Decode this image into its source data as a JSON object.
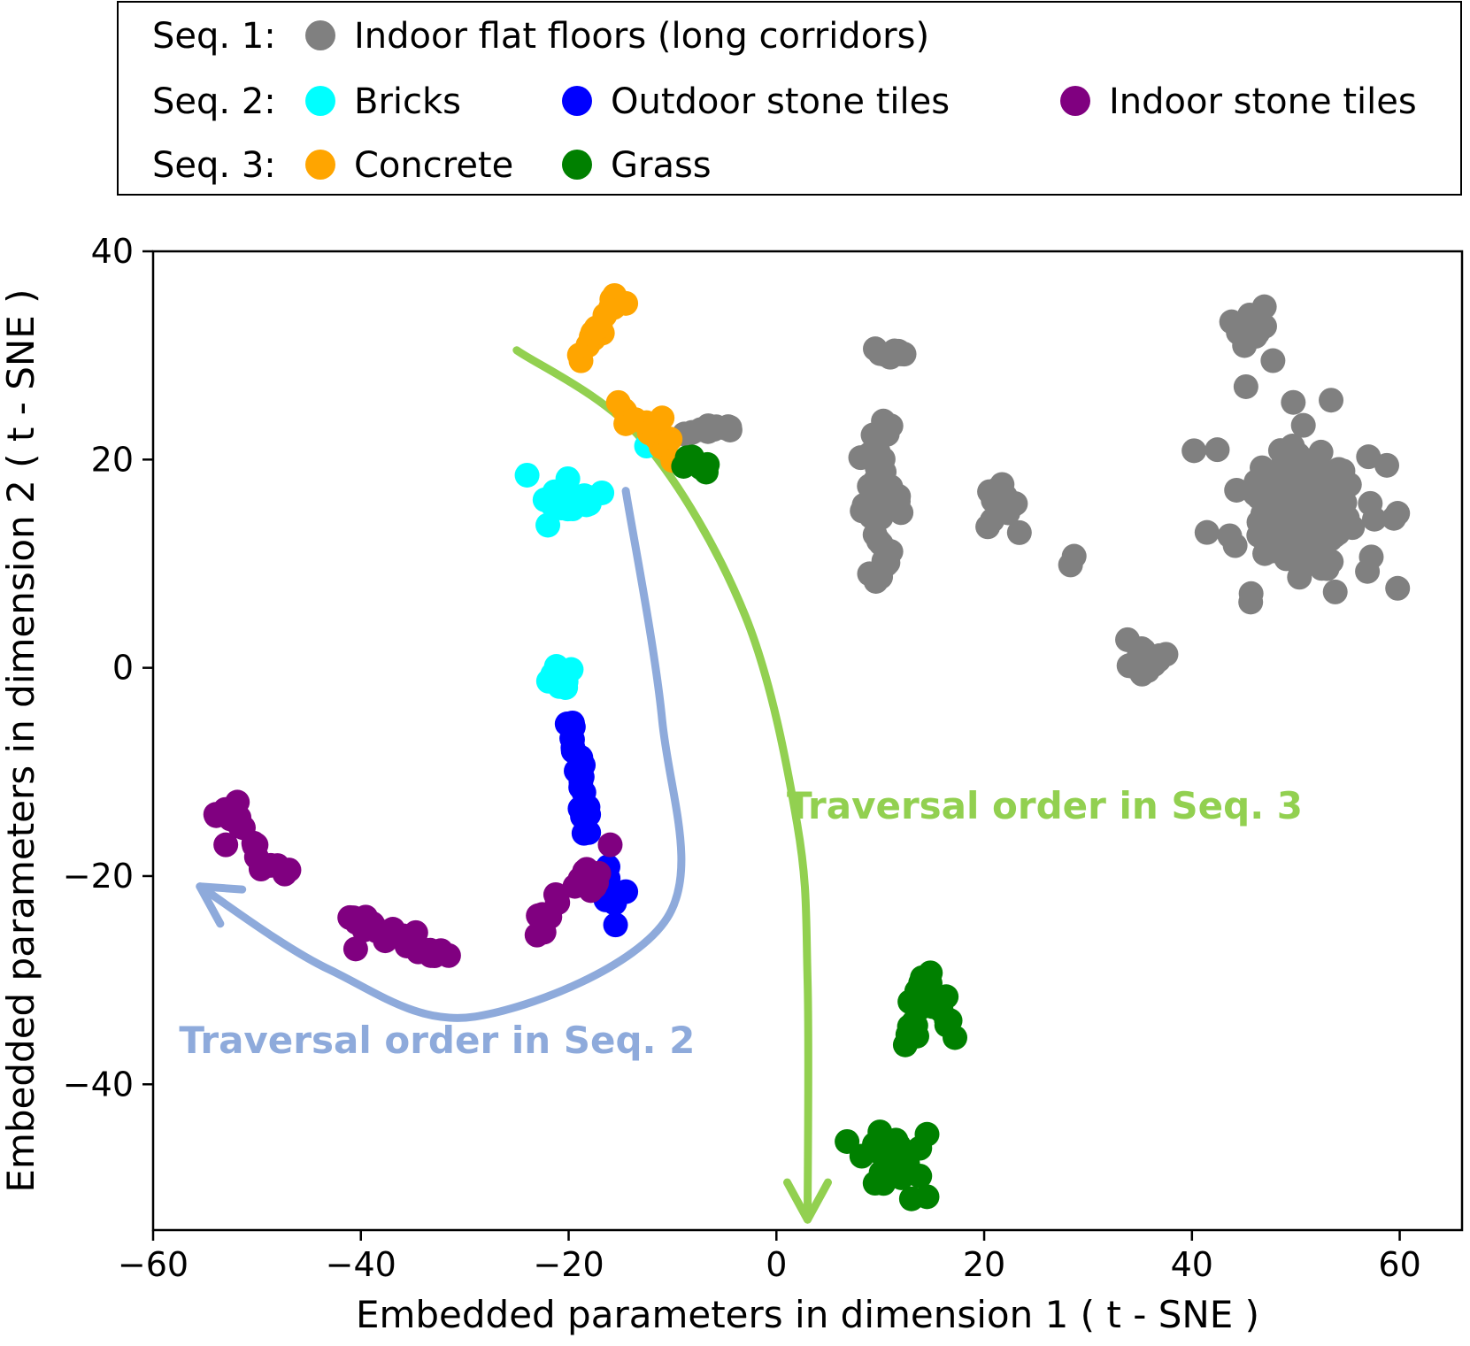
{
  "chart_data": {
    "type": "scatter",
    "xlabel": "Embedded parameters in dimension 1 ( t - SNE )",
    "ylabel": "Embedded parameters in dimension 2 ( t - SNE )",
    "xlim": [
      -60,
      66
    ],
    "ylim": [
      -54,
      40
    ],
    "xticks": [
      -60,
      -40,
      -20,
      0,
      20,
      40,
      60
    ],
    "yticks": [
      -40,
      -20,
      0,
      20,
      40
    ],
    "xtick_labels": [
      "−60",
      "−40",
      "−20",
      "0",
      "20",
      "40",
      "60"
    ],
    "ytick_labels": [
      "−40",
      "−20",
      "0",
      "20",
      "40"
    ],
    "grid": false,
    "legend": {
      "placement": "top",
      "groups": [
        {
          "label": "Seq. 1:",
          "entries": [
            {
              "name": "Indoor flat floors (long corridors)",
              "color": "#808080"
            }
          ]
        },
        {
          "label": "Seq. 2:",
          "entries": [
            {
              "name": "Bricks",
              "color": "#00ffff"
            },
            {
              "name": "Outdoor stone tiles",
              "color": "#0000ff"
            },
            {
              "name": "Indoor stone tiles",
              "color": "#800080"
            }
          ]
        },
        {
          "label": "Seq. 3:",
          "entries": [
            {
              "name": "Concrete",
              "color": "#ffa500"
            },
            {
              "name": "Grass",
              "color": "#008000"
            }
          ]
        }
      ]
    },
    "series": [
      {
        "name": "Indoor flat floors (long corridors)",
        "color": "#808080",
        "clusters": [
          {
            "center": [
              51,
              15
            ],
            "spread": [
              3.5,
              4.5
            ],
            "n": 170
          },
          {
            "center": [
              50,
              16
            ],
            "spread": [
              7,
              7
            ],
            "n": 65
          },
          {
            "center": [
              45.5,
              33
            ],
            "spread": [
              1.2,
              1.6
            ],
            "n": 12
          },
          {
            "center": [
              35.5,
              0.5
            ],
            "spread": [
              1.3,
              1.3
            ],
            "n": 14
          },
          {
            "center": [
              28.5,
              10.3
            ],
            "spread": [
              0.3,
              0.3
            ],
            "n": 2
          },
          {
            "center": [
              11,
              30.2
            ],
            "spread": [
              1.6,
              0.5
            ],
            "n": 10
          },
          {
            "center": [
              10,
              16
            ],
            "spread": [
              1.8,
              5.5
            ],
            "n": 40
          },
          {
            "center": [
              21.5,
              15.5
            ],
            "spread": [
              1.4,
              1.8
            ],
            "n": 14
          },
          {
            "center": [
              -6,
              22.9
            ],
            "spread": [
              2.4,
              0.4
            ],
            "n": 12
          }
        ],
        "points": [
          [
            45.2,
            27
          ],
          [
            47.8,
            29.5
          ],
          [
            47,
            32.8
          ],
          [
            37.5,
            1.3
          ],
          [
            33.8,
            2.7
          ]
        ]
      },
      {
        "name": "Bricks",
        "color": "#00ffff",
        "clusters": [
          {
            "center": [
              -19.5,
              16.2
            ],
            "spread": [
              2.2,
              1.4
            ],
            "n": 30
          },
          {
            "center": [
              -21,
              -1
            ],
            "spread": [
              1.3,
              0.9
            ],
            "n": 16
          }
        ],
        "points": [
          [
            -12.5,
            21.3
          ],
          [
            -24,
            18.5
          ],
          [
            -16.8,
            16.8
          ],
          [
            -22,
            13.7
          ]
        ]
      },
      {
        "name": "Outdoor stone tiles",
        "color": "#0000ff",
        "segments": [
          {
            "from": [
              -20,
              -5
            ],
            "to": [
              -18,
              -16
            ],
            "n": 22
          },
          {
            "from": [
              -16.5,
              -19
            ],
            "to": [
              -16,
              -24
            ],
            "n": 8
          }
        ],
        "points": [
          [
            -14.5,
            -21.5
          ]
        ]
      },
      {
        "name": "Indoor stone tiles",
        "color": "#800080",
        "segments": [
          {
            "from": [
              -54,
              -14.5
            ],
            "to": [
              -52,
              -14
            ],
            "n": 8
          },
          {
            "from": [
              -52,
              -15
            ],
            "to": [
              -47,
              -20
            ],
            "n": 12
          },
          {
            "from": [
              -41,
              -24
            ],
            "to": [
              -32,
              -27.5
            ],
            "n": 30
          },
          {
            "from": [
              -23,
              -25
            ],
            "to": [
              -21,
              -22
            ],
            "n": 8
          }
        ],
        "clusters": [
          {
            "center": [
              -18,
              -20.5
            ],
            "spread": [
              1.0,
              0.9
            ],
            "n": 14
          }
        ],
        "points": [
          [
            -53,
            -17
          ],
          [
            -40.5,
            -27
          ],
          [
            -16,
            -17
          ]
        ]
      },
      {
        "name": "Concrete",
        "color": "#ffa500",
        "segments": [
          {
            "from": [
              -18.5,
              30
            ],
            "to": [
              -15.5,
              35.5
            ],
            "n": 16
          },
          {
            "from": [
              -15,
              24.8
            ],
            "to": [
              -10,
              21
            ],
            "n": 16
          }
        ],
        "points": [
          [
            -14.5,
            35
          ],
          [
            -11,
            24
          ]
        ]
      },
      {
        "name": "Grass",
        "color": "#008000",
        "segments": [
          {
            "from": [
              -9,
              20
            ],
            "to": [
              -6.5,
              19
            ],
            "n": 8
          },
          {
            "from": [
              12.7,
              -36
            ],
            "to": [
              14,
              -30
            ],
            "n": 12
          },
          {
            "from": [
              14,
              -29.5
            ],
            "to": [
              17,
              -35
            ],
            "n": 12
          }
        ],
        "clusters": [
          {
            "center": [
              11,
              -47
            ],
            "spread": [
              2.0,
              1.8
            ],
            "n": 26
          }
        ],
        "points": [
          [
            6.8,
            -45.5
          ],
          [
            14.5,
            -44.8
          ],
          [
            9.5,
            -49.5
          ],
          [
            13,
            -51
          ],
          [
            14.5,
            -50.8
          ]
        ]
      }
    ],
    "annotations": [
      {
        "text": "Traversal order in Seq. 3",
        "color": "#92d050",
        "anchor": [
          1,
          -14.5
        ]
      },
      {
        "text": "Traversal order in Seq. 2",
        "color": "#8eaadb",
        "anchor": [
          -57.5,
          -37
        ]
      }
    ],
    "arrows": [
      {
        "name": "seq3-arrow",
        "color": "#92d050",
        "path": [
          [
            -25,
            30.5
          ],
          [
            -13,
            22
          ],
          [
            -3,
            5
          ],
          [
            2,
            -15
          ],
          [
            3,
            -30
          ],
          [
            3,
            -53
          ]
        ]
      },
      {
        "name": "seq2-arrow",
        "color": "#8eaadb",
        "path": [
          [
            -14.5,
            17
          ],
          [
            -11,
            -5
          ],
          [
            -10.5,
            -24
          ],
          [
            -29,
            -33.5
          ],
          [
            -43,
            -29
          ],
          [
            -55.5,
            -21
          ]
        ]
      }
    ]
  }
}
